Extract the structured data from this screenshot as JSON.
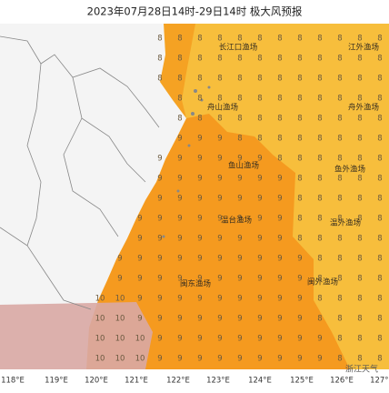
{
  "title": "2023年07月28日14时-29日14时 极大风预报",
  "fishing_grounds": [
    "长江口渔场",
    "江外渔场",
    "舟山渔场",
    "舟外渔场",
    "鱼山渔场",
    "鱼外渔场",
    "温台渔场",
    "温外渔场",
    "闽东渔场",
    "闽外渔场"
  ],
  "longitudes": [
    "118°E",
    "119°E",
    "120°E",
    "121°E",
    "122°E",
    "123°E",
    "124°E",
    "125°E",
    "126°E",
    "127°E"
  ],
  "watermark": "浙江天气",
  "wind_grid": [
    [
      null,
      null,
      null,
      8,
      8,
      8,
      8,
      8,
      8,
      8,
      8,
      8,
      8,
      8,
      8
    ],
    [
      null,
      null,
      null,
      8,
      8,
      8,
      8,
      8,
      8,
      8,
      8,
      8,
      8,
      8,
      8
    ],
    [
      null,
      null,
      null,
      8,
      8,
      8,
      8,
      8,
      8,
      8,
      8,
      8,
      8,
      8,
      8
    ],
    [
      null,
      null,
      null,
      null,
      8,
      8,
      8,
      8,
      8,
      8,
      8,
      8,
      8,
      8,
      8
    ],
    [
      null,
      null,
      null,
      null,
      8,
      8,
      8,
      8,
      8,
      8,
      8,
      8,
      8,
      8,
      8
    ],
    [
      null,
      null,
      null,
      null,
      9,
      9,
      9,
      8,
      8,
      8,
      8,
      8,
      8,
      8,
      8
    ],
    [
      null,
      null,
      null,
      9,
      9,
      9,
      9,
      9,
      9,
      8,
      8,
      8,
      8,
      8,
      8
    ],
    [
      null,
      null,
      null,
      9,
      9,
      9,
      9,
      9,
      9,
      9,
      8,
      8,
      8,
      8,
      8
    ],
    [
      null,
      null,
      null,
      9,
      9,
      9,
      9,
      9,
      9,
      9,
      8,
      8,
      8,
      8,
      8
    ],
    [
      null,
      null,
      9,
      9,
      9,
      9,
      9,
      9,
      9,
      9,
      8,
      8,
      8,
      8,
      8
    ],
    [
      null,
      null,
      9,
      9,
      9,
      9,
      9,
      9,
      9,
      9,
      8,
      8,
      8,
      8,
      8
    ],
    [
      null,
      9,
      9,
      9,
      9,
      9,
      9,
      9,
      9,
      9,
      9,
      8,
      8,
      8,
      8
    ],
    [
      null,
      9,
      9,
      9,
      9,
      9,
      9,
      9,
      9,
      9,
      9,
      8,
      8,
      8,
      8
    ],
    [
      10,
      10,
      9,
      9,
      9,
      9,
      9,
      9,
      9,
      9,
      9,
      8,
      8,
      8,
      8
    ],
    [
      10,
      10,
      9,
      9,
      9,
      9,
      9,
      9,
      9,
      9,
      9,
      8,
      8,
      8,
      8
    ],
    [
      10,
      10,
      10,
      9,
      9,
      9,
      9,
      9,
      9,
      9,
      9,
      9,
      8,
      8,
      8
    ],
    [
      10,
      10,
      10,
      9,
      9,
      9,
      9,
      9,
      9,
      9,
      9,
      9,
      8,
      8,
      8
    ]
  ]
}
